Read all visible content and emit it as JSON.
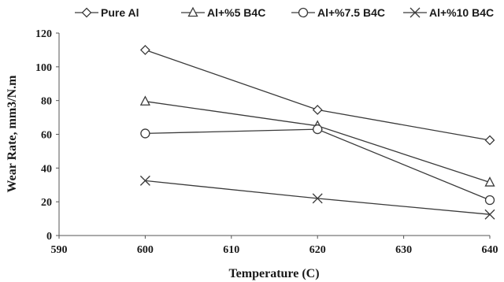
{
  "chart_data": {
    "type": "line",
    "title": "",
    "xlabel": "Temperature (C)",
    "ylabel": "Wear Rate, mm3/N.m",
    "xlim": [
      590,
      640
    ],
    "ylim": [
      0,
      120
    ],
    "x_ticks": [
      "590",
      "600",
      "610",
      "620",
      "630",
      "640"
    ],
    "y_ticks": [
      "0",
      "20",
      "40",
      "60",
      "80",
      "100",
      "120"
    ],
    "grid": false,
    "legend_position": "top",
    "line_color": "#3a3a3a",
    "x": [
      600,
      620,
      640
    ],
    "series": [
      {
        "name": "Pure Al",
        "marker": "diamond",
        "values": [
          110,
          74.5,
          56.5
        ]
      },
      {
        "name": "Al+%5 B4C",
        "marker": "triangle",
        "values": [
          79.5,
          65,
          31.5
        ]
      },
      {
        "name": "Al+%7.5 B4C",
        "marker": "circle",
        "values": [
          60.5,
          63,
          21
        ]
      },
      {
        "name": "Al+%10 B4C",
        "marker": "x",
        "values": [
          32.5,
          22,
          12.5
        ]
      }
    ]
  }
}
